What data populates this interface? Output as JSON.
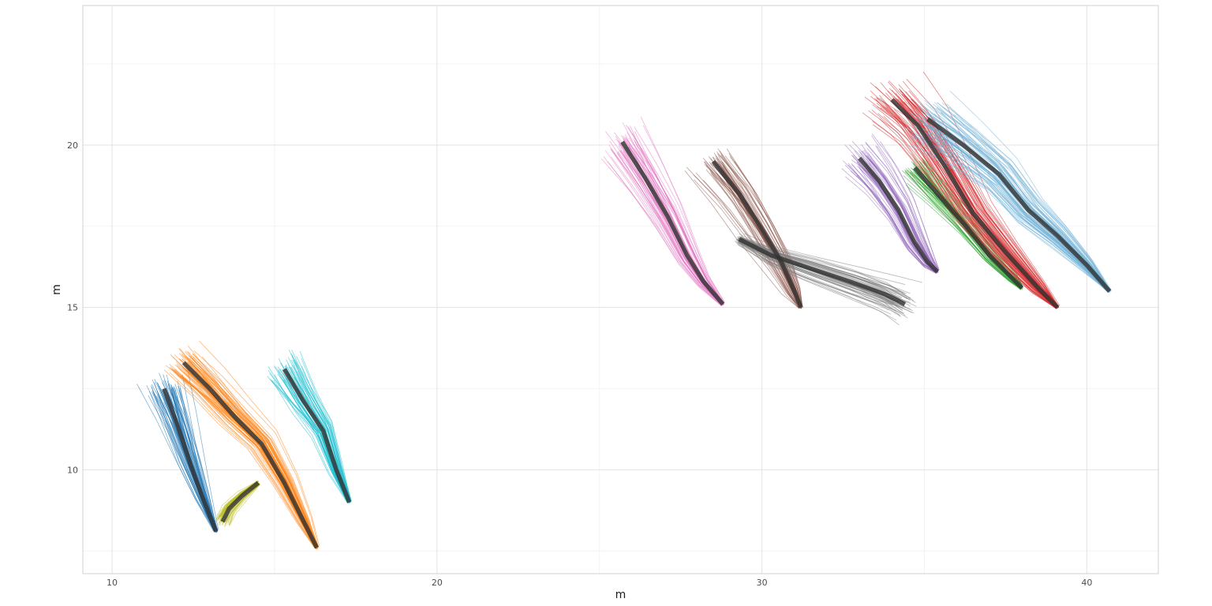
{
  "chart_data": {
    "type": "line",
    "title": "",
    "xlabel": "m",
    "ylabel": "m",
    "xlim": [
      9.1,
      42.2
    ],
    "ylim": [
      6.8,
      24.3
    ],
    "x_ticks": [
      10,
      20,
      30,
      40
    ],
    "x_tick_labels": [
      "10",
      "20",
      "30",
      "40"
    ],
    "y_ticks": [
      10,
      15,
      20
    ],
    "y_tick_labels": [
      "10",
      "15",
      "20"
    ],
    "grid": true,
    "legend": "none",
    "colors": {
      "mean_path": "#333333",
      "grid_major": "#e3e3e3",
      "grid_minor": "#f1f1f1",
      "panel_border": "#d0d0d0"
    },
    "series": [
      {
        "color": "#1f77b4",
        "mean_path": [
          [
            11.6,
            12.5
          ],
          [
            12.0,
            11.4
          ],
          [
            12.4,
            10.2
          ],
          [
            12.8,
            9.1
          ],
          [
            13.2,
            8.1
          ]
        ],
        "sample_count": 70,
        "spread_start": 0.8,
        "spread_end": 0.08
      },
      {
        "color": "#ff7f0e",
        "mean_path": [
          [
            12.2,
            13.3
          ],
          [
            13.0,
            12.5
          ],
          [
            13.8,
            11.6
          ],
          [
            14.6,
            10.8
          ],
          [
            15.3,
            9.6
          ],
          [
            15.9,
            8.4
          ],
          [
            16.3,
            7.6
          ]
        ],
        "sample_count": 70,
        "spread_start": 0.9,
        "spread_end": 0.1
      },
      {
        "color": "#bcbd22",
        "mean_path": [
          [
            13.4,
            8.4
          ],
          [
            13.6,
            8.8
          ],
          [
            14.0,
            9.2
          ],
          [
            14.5,
            9.6
          ]
        ],
        "sample_count": 45,
        "spread_start": 0.35,
        "spread_end": 0.1
      },
      {
        "color": "#17becf",
        "mean_path": [
          [
            15.3,
            13.1
          ],
          [
            15.9,
            12.1
          ],
          [
            16.5,
            11.2
          ],
          [
            16.9,
            10.0
          ],
          [
            17.3,
            9.0
          ]
        ],
        "sample_count": 60,
        "spread_start": 0.7,
        "spread_end": 0.08
      },
      {
        "color": "#e377c2",
        "mean_path": [
          [
            25.7,
            20.1
          ],
          [
            26.4,
            19.0
          ],
          [
            27.1,
            17.8
          ],
          [
            27.7,
            16.6
          ],
          [
            28.2,
            15.8
          ],
          [
            28.8,
            15.1
          ]
        ],
        "sample_count": 60,
        "spread_start": 0.9,
        "spread_end": 0.08
      },
      {
        "color": "#8c564b",
        "mean_path": [
          [
            28.5,
            19.5
          ],
          [
            29.3,
            18.5
          ],
          [
            30.0,
            17.4
          ],
          [
            30.6,
            16.4
          ],
          [
            31.0,
            15.5
          ],
          [
            31.2,
            15.0
          ]
        ],
        "sample_count": 60,
        "spread_start": 0.9,
        "spread_end": 0.08
      },
      {
        "color": "#7f7f7f",
        "mean_path": [
          [
            29.3,
            17.1
          ],
          [
            30.3,
            16.6
          ],
          [
            31.5,
            16.2
          ],
          [
            32.7,
            15.8
          ],
          [
            33.8,
            15.4
          ],
          [
            34.4,
            15.1
          ]
        ],
        "sample_count": 60,
        "spread_start": 0.2,
        "spread_end": 0.75
      },
      {
        "color": "#9467bd",
        "mean_path": [
          [
            33.0,
            19.6
          ],
          [
            33.6,
            18.9
          ],
          [
            34.2,
            18.0
          ],
          [
            34.7,
            17.0
          ],
          [
            35.1,
            16.4
          ],
          [
            35.4,
            16.1
          ]
        ],
        "sample_count": 55,
        "spread_start": 0.8,
        "spread_end": 0.08
      },
      {
        "color": "#2ca02c",
        "mean_path": [
          [
            34.7,
            19.3
          ],
          [
            35.4,
            18.5
          ],
          [
            36.2,
            17.6
          ],
          [
            37.0,
            16.6
          ],
          [
            37.7,
            15.9
          ],
          [
            38.0,
            15.6
          ]
        ],
        "sample_count": 50,
        "spread_start": 0.7,
        "spread_end": 0.08
      },
      {
        "color": "#d62728",
        "mean_path": [
          [
            34.0,
            21.4
          ],
          [
            34.8,
            20.6
          ],
          [
            35.6,
            19.4
          ],
          [
            36.5,
            17.9
          ],
          [
            37.5,
            16.7
          ],
          [
            38.5,
            15.6
          ],
          [
            39.1,
            15.0
          ]
        ],
        "sample_count": 70,
        "spread_start": 1.3,
        "spread_end": 0.08
      },
      {
        "color": "#6baed6",
        "mean_path": [
          [
            35.1,
            20.8
          ],
          [
            36.2,
            20.0
          ],
          [
            37.3,
            19.1
          ],
          [
            38.2,
            18.0
          ],
          [
            39.1,
            17.2
          ],
          [
            40.0,
            16.3
          ],
          [
            40.7,
            15.5
          ]
        ],
        "sample_count": 70,
        "spread_start": 1.3,
        "spread_end": 0.08
      }
    ]
  }
}
